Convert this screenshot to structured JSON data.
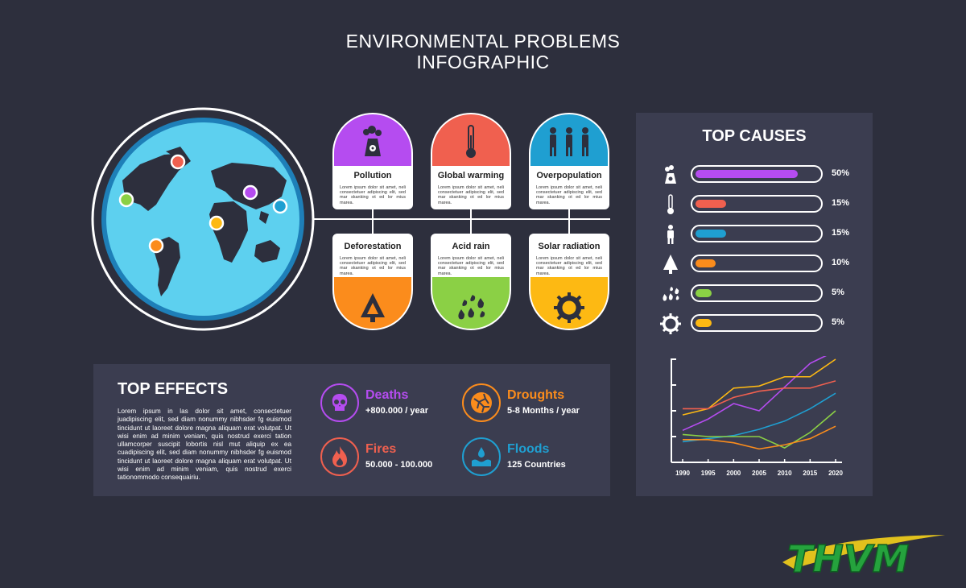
{
  "header": {
    "title_line1": "ENVIRONMENTAL PROBLEMS",
    "title_line2": "INFOGRAPHIC"
  },
  "cards": [
    {
      "label": "Pollution",
      "text": "Lorem ipsum dolor sit amet, neli consectetuer adipiscing elit, sed mar skanking ot ed lor mius marea.",
      "color": "#b54cf0",
      "icon": "nuclear-plant-icon"
    },
    {
      "label": "Global warming",
      "text": "Lorem ipsum dolor sit amet, neli consectetuer adipiscing elit, sed mar skanking ot ed lor mius marea.",
      "color": "#f0604f",
      "icon": "thermometer-icon"
    },
    {
      "label": "Overpopulation",
      "text": "Lorem ipsum dolor sit amet, neli consectetuer adipiscing elit, sed mar skanking ot ed lor mius marea.",
      "color": "#1f9fd1",
      "icon": "people-icon"
    },
    {
      "label": "Deforestation",
      "text": "Lorem ipsum dolor sit amet, neli consectetuer adipiscing elit, sed mar skanking ot ed lor mius marea.",
      "color": "#fb8c1c",
      "icon": "tree-icon"
    },
    {
      "label": "Acid rain",
      "text": "Lorem ipsum dolor sit amet, neli consectetuer adipiscing elit, sed mar skanking ot ed lor mius marea.",
      "color": "#8bd045",
      "icon": "acid-drops-icon"
    },
    {
      "label": "Solar radiation",
      "text": "Lorem ipsum dolor sit amet, neli consectetuer adipiscing elit, sed mar skanking ot ed lor mius marea.",
      "color": "#fdb913",
      "icon": "sun-icon"
    }
  ],
  "effects": {
    "title": "TOP EFFECTS",
    "text": "Lorem ipsum in las dolor sit amet, consectetuer juadipiscing elit, sed diam nonummy nibhsder fg euismod tincidunt ut laoreet dolore magna aliquam erat volutpat. Ut wisi enim ad minim veniam, quis nostrud exerci tation ullamcorper suscipit lobortis nisl mut aliquip ex ea cuadipiscing elit, sed diam nonummy nibhsder fg euismod tincidunt ut laoreet dolore magna aliquam erat volutpat. Ut wisi enim ad minim veniam, quis nostrud exerci tationommodo consequairiu.",
    "items": [
      {
        "name": "Deaths",
        "value": "+800.000 / year",
        "color": "#b54cf0",
        "icon": "skull-icon"
      },
      {
        "name": "Droughts",
        "value": "5-8 Months / year",
        "color": "#fb8c1c",
        "icon": "cracked-earth-icon"
      },
      {
        "name": "Fires",
        "value": "50.000 - 100.000",
        "color": "#f0604f",
        "icon": "fire-icon"
      },
      {
        "name": "Floods",
        "value": "125 Countries",
        "color": "#1f9fd1",
        "icon": "flood-icon"
      }
    ]
  },
  "causes": {
    "title": "TOP CAUSES",
    "bars": [
      {
        "value": 50,
        "label": "50%",
        "color": "#b54cf0",
        "icon": "nuclear-plant-icon"
      },
      {
        "value": 15,
        "label": "15%",
        "color": "#f0604f",
        "icon": "thermometer-icon"
      },
      {
        "value": 15,
        "label": "15%",
        "color": "#1f9fd1",
        "icon": "person-icon"
      },
      {
        "value": 10,
        "label": "10%",
        "color": "#fb8c1c",
        "icon": "tree-icon"
      },
      {
        "value": 5,
        "label": "5%",
        "color": "#8bd045",
        "icon": "acid-drops-icon"
      },
      {
        "value": 5,
        "label": "5%",
        "color": "#fdb913",
        "icon": "sun-icon"
      }
    ]
  },
  "chart_data": {
    "type": "line",
    "x": [
      1990,
      1995,
      2000,
      2005,
      2010,
      2015,
      2020
    ],
    "xlabel": "",
    "ylabel": "",
    "ylim": [
      0,
      10
    ],
    "series": [
      {
        "color": "#b54cf0",
        "values": [
          3.1,
          4.2,
          5.7,
          5.0,
          7.3,
          9.6,
          10.8
        ]
      },
      {
        "color": "#fdb913",
        "values": [
          4.6,
          5.2,
          7.2,
          7.4,
          8.3,
          8.3,
          10.0
        ]
      },
      {
        "color": "#f0604f",
        "values": [
          5.2,
          5.2,
          6.3,
          6.9,
          7.2,
          7.2,
          7.9
        ]
      },
      {
        "color": "#1f9fd1",
        "values": [
          2.0,
          2.3,
          2.6,
          3.2,
          4.0,
          5.2,
          6.7
        ]
      },
      {
        "color": "#8bd045",
        "values": [
          2.7,
          2.5,
          2.5,
          2.5,
          1.4,
          2.9,
          5.0
        ]
      },
      {
        "color": "#fb8c1c",
        "values": [
          2.2,
          2.2,
          1.9,
          1.3,
          1.7,
          2.3,
          3.5
        ]
      }
    ],
    "tick_labels": [
      "1990",
      "1995",
      "2000",
      "2005",
      "2010",
      "2015",
      "2020"
    ]
  },
  "logo": {
    "text": "THVM",
    "color": "#25a33d"
  }
}
